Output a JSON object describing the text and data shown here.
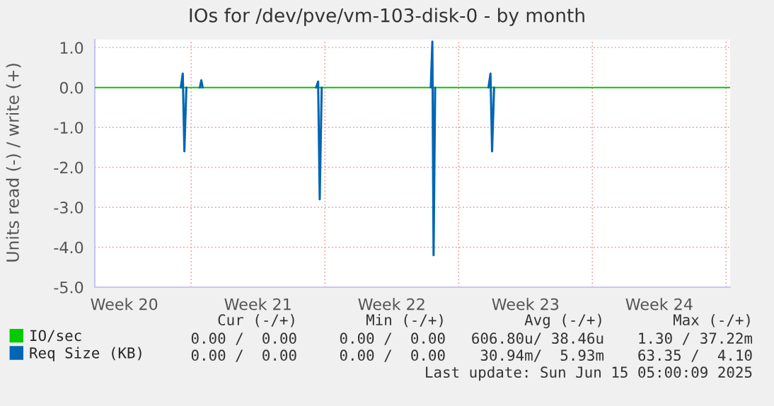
{
  "chart_data": {
    "type": "line",
    "title": "IOs for /dev/pve/vm-103-disk-0 - by month",
    "ylabel": "Units read (-) / write (+)",
    "series": [
      {
        "name": "IO/sec",
        "color": "#00cc00",
        "x": [
          "2025-05-13T23:00",
          "2025-06-16T05:00"
        ],
        "values": [
          0,
          0
        ]
      },
      {
        "name": "Req Size (KB)",
        "color": "#0066b3",
        "x": [
          "2025-05-18T11:00",
          "2025-05-18T13:30",
          "2025-05-18T15:30",
          "2025-05-18T18:00",
          "2025-05-19T00:00",
          "2025-05-19T11:00",
          "2025-05-19T12:45",
          "2025-05-19T14:30",
          "2025-05-22T00:00",
          "2025-05-25T13:00",
          "2025-05-25T15:30",
          "2025-05-25T17:30",
          "2025-05-25T20:00",
          "2025-05-28T00:00",
          "2025-05-31T13:00",
          "2025-05-31T15:00",
          "2025-05-31T16:30",
          "2025-05-31T18:30",
          "2025-06-02T00:00",
          "2025-06-03T13:30",
          "2025-06-03T16:00",
          "2025-06-03T18:00",
          "2025-06-03T20:30"
        ],
        "values": [
          0,
          0.35,
          -1.6,
          0,
          null,
          0,
          0.18,
          0,
          null,
          0,
          0.15,
          -2.8,
          0,
          null,
          0,
          1.15,
          -4.2,
          0,
          null,
          0,
          0.35,
          -1.6,
          0
        ]
      }
    ],
    "xlim": [
      "2025-05-13T23:00",
      "2025-06-16T05:00"
    ],
    "xticks": [
      {
        "value": "2025-05-15T12:00",
        "label": "Week 20"
      },
      {
        "value": "2025-05-19",
        "label": null
      },
      {
        "value": "2025-05-22T12:00",
        "label": "Week 21"
      },
      {
        "value": "2025-05-26",
        "label": null
      },
      {
        "value": "2025-05-29T12:00",
        "label": "Week 22"
      },
      {
        "value": "2025-06-02",
        "label": null
      },
      {
        "value": "2025-06-05T12:00",
        "label": "Week 23"
      },
      {
        "value": "2025-06-09",
        "label": null
      },
      {
        "value": "2025-06-12T12:00",
        "label": "Week 24"
      },
      {
        "value": "2025-06-16",
        "label": null
      }
    ],
    "ylim": [
      -5,
      1.2
    ],
    "yticks": [
      {
        "value": -5,
        "label": "-5.0"
      },
      {
        "value": -4,
        "label": "-4.0"
      },
      {
        "value": -3,
        "label": "-3.0"
      },
      {
        "value": -2,
        "label": "-2.0"
      },
      {
        "value": -1,
        "label": "-1.0"
      },
      {
        "value": 0,
        "label": "0.0"
      },
      {
        "value": 1,
        "label": "1.0"
      }
    ],
    "grid": true,
    "legend": "bottom",
    "line_style": "solid",
    "marker": "none",
    "annotations": [
      "Cur (-/+)",
      "Min (-/+)",
      "Avg (-/+)",
      "Max (-/+)",
      "0.00 /  0.00",
      "0.00 /  0.00",
      "606.80u/ 38.46u",
      "1.30 / 37.22m",
      "0.00 /  0.00",
      "0.00 /  0.00",
      "30.94m/  5.93m",
      "63.35 /  4.10",
      "Last update: Sun Jun 15 05:00:09 2025"
    ]
  }
}
